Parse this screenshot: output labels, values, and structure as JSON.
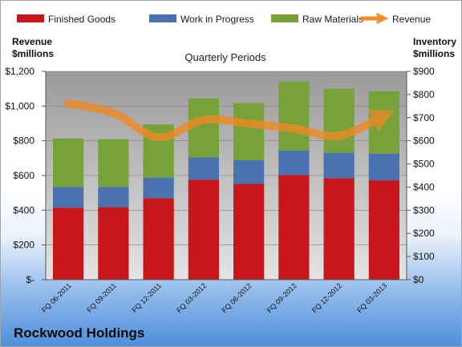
{
  "chart_data": {
    "type": "bar",
    "stacked": true,
    "title": "Quarterly Periods",
    "y_left_label_lines": [
      "Revenue",
      "$millions"
    ],
    "y_right_label_lines": [
      "Inventory",
      "$millions"
    ],
    "categories": [
      "FQ 06-2011",
      "FQ 09-2011",
      "FQ 12-2011",
      "FQ 03-2012",
      "FQ 06-2012",
      "FQ 09-2012",
      "FQ 12-2012",
      "FQ 03-2013"
    ],
    "series": [
      {
        "name": "Finished Goods",
        "axis": "right",
        "color": "#c8171b",
        "values": [
          311,
          313,
          352,
          432,
          414,
          452,
          438,
          429
        ]
      },
      {
        "name": "Work in Progress",
        "axis": "right",
        "color": "#4a72b0",
        "values": [
          90,
          88,
          89,
          96,
          102,
          106,
          110,
          115
        ]
      },
      {
        "name": "Raw Materials",
        "axis": "right",
        "color": "#77a23a",
        "values": [
          209,
          206,
          230,
          255,
          247,
          298,
          277,
          270
        ]
      },
      {
        "name": "Revenue",
        "type": "line",
        "axis": "left",
        "color": "#f08a24",
        "values": [
          1015,
          960,
          820,
          920,
          900,
          870,
          830,
          945
        ]
      }
    ],
    "y_left": {
      "min": 0,
      "max": 1200,
      "step": 200,
      "tick_labels": [
        "$-",
        "$200",
        "$400",
        "$600",
        "$800",
        "$1,000",
        "$1,200"
      ]
    },
    "y_right": {
      "min": 0,
      "max": 900,
      "step": 100,
      "tick_labels": [
        "$0",
        "$100",
        "$200",
        "$300",
        "$400",
        "$500",
        "$600",
        "$700",
        "$800",
        "$900"
      ]
    },
    "legend_position": "top",
    "grid": true
  },
  "company": "Rockwood Holdings"
}
